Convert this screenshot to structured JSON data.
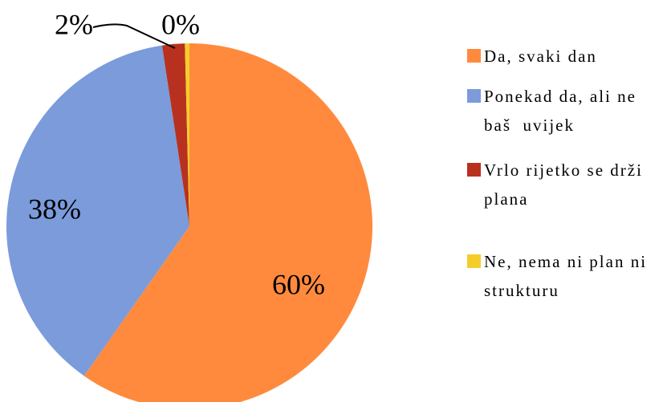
{
  "chart_data": {
    "type": "pie",
    "categories": [
      "Da, svaki dan",
      "Ponekad da, ali ne baš  uvijek",
      "Vrlo rijetko se drži plana",
      "Ne, nema ni plan ni strukturu"
    ],
    "values": [
      60,
      38,
      2,
      0.4
    ],
    "value_labels": [
      "60%",
      "38%",
      "2%",
      "0%"
    ],
    "colors": [
      "#FF8A3D",
      "#7B9BDB",
      "#B8311F",
      "#F5CD2B"
    ],
    "legend": "right"
  }
}
